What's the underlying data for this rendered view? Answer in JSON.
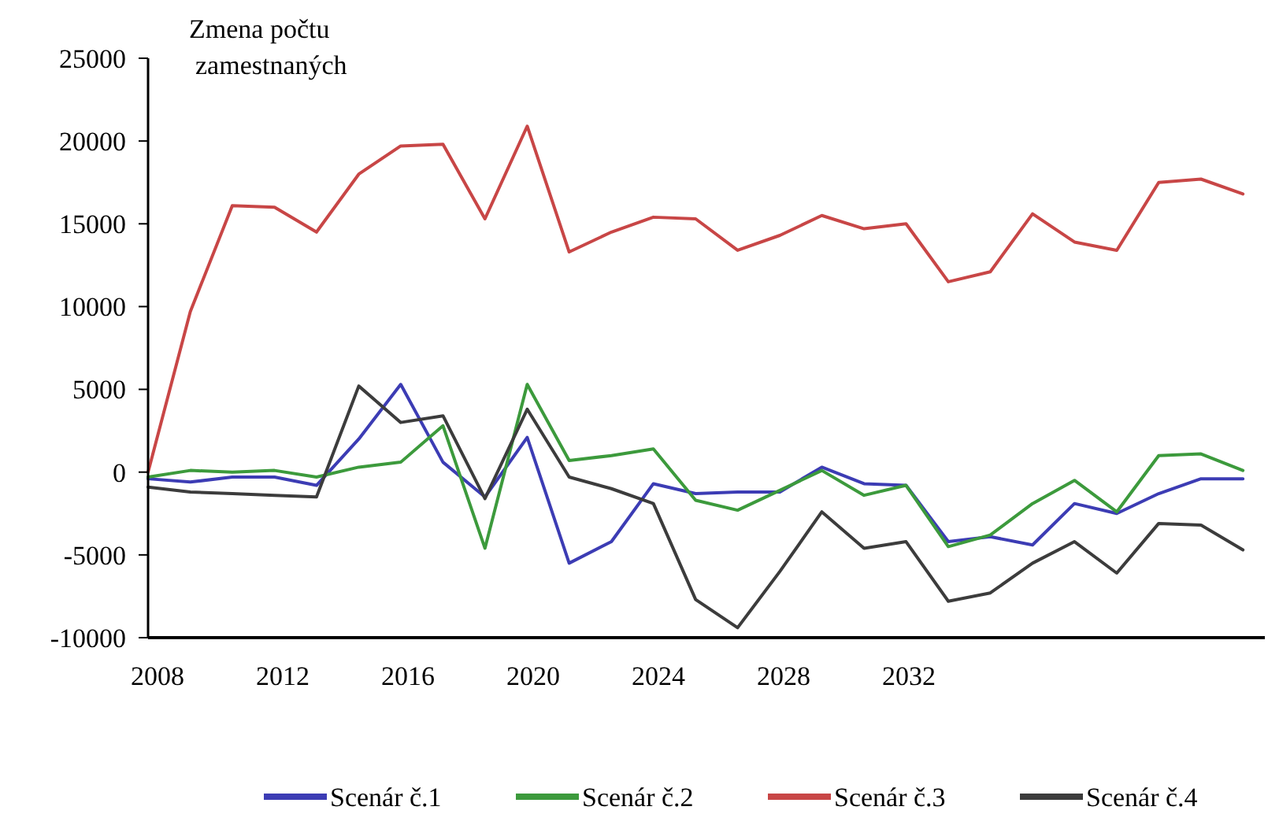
{
  "chart_data": {
    "type": "line",
    "ylabel": "Zmena počtu zamestnaných",
    "x": [
      2007.7,
      2009.05,
      2010.39,
      2011.74,
      2013.08,
      2014.43,
      2015.77,
      2017.12,
      2018.46,
      2019.81,
      2021.15,
      2022.5,
      2023.84,
      2025.19,
      2026.53,
      2027.88,
      2029.22,
      2030.57,
      2031.91,
      2033.26,
      2034.6,
      2035.95,
      2037.29,
      2038.64,
      2039.98,
      2041.33,
      2042.67
    ],
    "series": [
      {
        "name": "Scenár č.1",
        "color": "#3c3cb4",
        "values": [
          -400,
          -600,
          -300,
          -300,
          -800,
          2000,
          5300,
          600,
          -1500,
          2100,
          -5500,
          -4200,
          -700,
          -1300,
          -1200,
          -1200,
          300,
          -700,
          -800,
          -4200,
          -3900,
          -4400,
          -1900,
          -2500,
          -1300,
          -400,
          -400
        ]
      },
      {
        "name": "Scenár č.2",
        "color": "#3c9a3c",
        "values": [
          -300,
          100,
          0,
          100,
          -300,
          300,
          600,
          2800,
          -4600,
          5300,
          700,
          1000,
          1400,
          -1700,
          -2300,
          -1100,
          100,
          -1400,
          -800,
          -4500,
          -3800,
          -1900,
          -500,
          -2400,
          1000,
          1100,
          100
        ]
      },
      {
        "name": "Scenár č.3",
        "color": "#c84646",
        "values": [
          0,
          9700,
          16100,
          16000,
          14500,
          18000,
          19700,
          19800,
          15300,
          20900,
          13300,
          14500,
          15400,
          15300,
          13400,
          14300,
          15500,
          14700,
          15000,
          11500,
          12100,
          15600,
          13900,
          13400,
          17500,
          17700,
          16800
        ]
      },
      {
        "name": "Scenár č.4",
        "color": "#3c3c3c",
        "values": [
          -900,
          -1200,
          -1300,
          -1400,
          -1500,
          5200,
          3000,
          3400,
          -1600,
          3800,
          -300,
          -1000,
          -1900,
          -7700,
          -9400,
          -6000,
          -2400,
          -4600,
          -4200,
          -7800,
          -7300,
          -5500,
          -4200,
          -6100,
          -3100,
          -3200,
          -4700
        ]
      }
    ],
    "xlim": [
      2007.7,
      2043.37
    ],
    "xticks": [
      2008,
      2012,
      2016,
      2020,
      2024,
      2028,
      2032
    ],
    "ylim": [
      -10000,
      25000
    ],
    "yticks": [
      -10000,
      -5000,
      0,
      5000,
      10000,
      15000,
      20000,
      25000
    ],
    "grid": false,
    "legend": "bottom",
    "marker": "none",
    "line_style": "solid"
  }
}
